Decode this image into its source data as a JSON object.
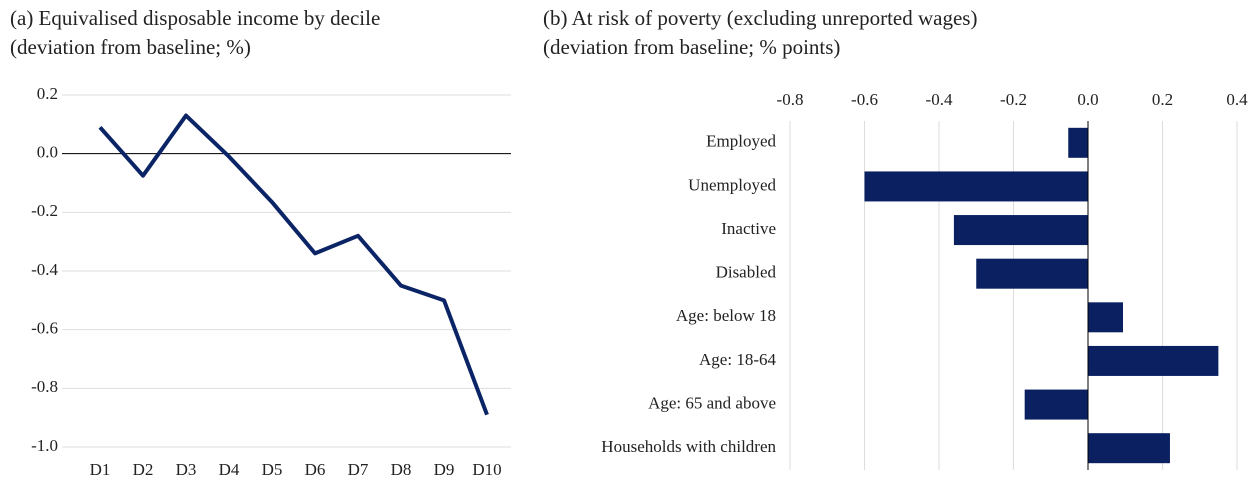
{
  "chart_data": [
    {
      "type": "line",
      "title": "(a) Equivalised disposable income by decile",
      "subtitle": "(deviation from baseline; %)",
      "categories": [
        "D1",
        "D2",
        "D3",
        "D4",
        "D5",
        "D6",
        "D7",
        "D8",
        "D9",
        "D10"
      ],
      "values": [
        0.09,
        -0.075,
        0.13,
        -0.01,
        -0.165,
        -0.34,
        -0.28,
        -0.45,
        -0.5,
        -0.89
      ],
      "color": "#0a2466",
      "ylim": [
        -1.0,
        0.2
      ],
      "yticks": [
        {
          "value": -1.0,
          "label": "-1.0"
        },
        -0.8,
        -0.6,
        -0.4,
        -0.2,
        {
          "value": 0,
          "label": "0.0"
        },
        0.2
      ],
      "grid": true
    },
    {
      "type": "barh",
      "title": "(b) At risk of poverty (excluding unreported wages)",
      "subtitle": "(deviation from baseline; % points)",
      "categories": [
        "Employed",
        "Unemployed",
        "Inactive",
        "Disabled",
        "Age: below 18",
        "Age: 18-64",
        "Age: 65 and above",
        "Households with children"
      ],
      "values": [
        -0.053,
        -0.6,
        -0.36,
        -0.3,
        0.094,
        0.35,
        -0.17,
        0.22
      ],
      "color": "#0a2060",
      "xlim": [
        -0.8,
        0.4
      ],
      "xticks": [
        -0.8,
        -0.6,
        -0.4,
        -0.2,
        {
          "value": 0,
          "label": "0.0"
        },
        0.2,
        0.4
      ],
      "grid": true
    }
  ]
}
